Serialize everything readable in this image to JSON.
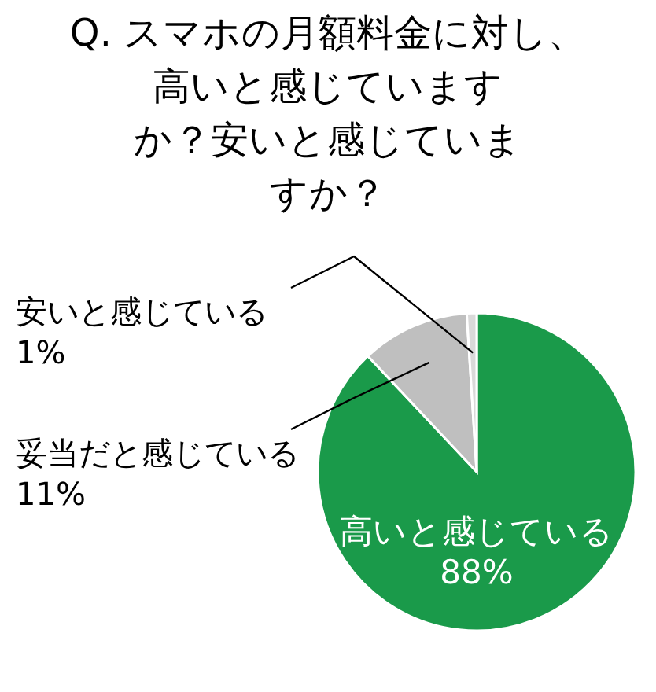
{
  "chart_data": {
    "type": "pie",
    "title": "Q. スマホの月額料金に対し、",
    "subtitle": "高いと感じていますか？安いと感じていますか？",
    "categories": [
      "高いと感じている",
      "妥当だと感じている",
      "安いと感じている"
    ],
    "values": [
      88,
      11,
      1
    ],
    "colors": [
      "#1a9a4a",
      "#bfbfbf",
      "#d9d9d9"
    ],
    "value_labels": [
      "88%",
      "11%",
      "1%"
    ]
  }
}
